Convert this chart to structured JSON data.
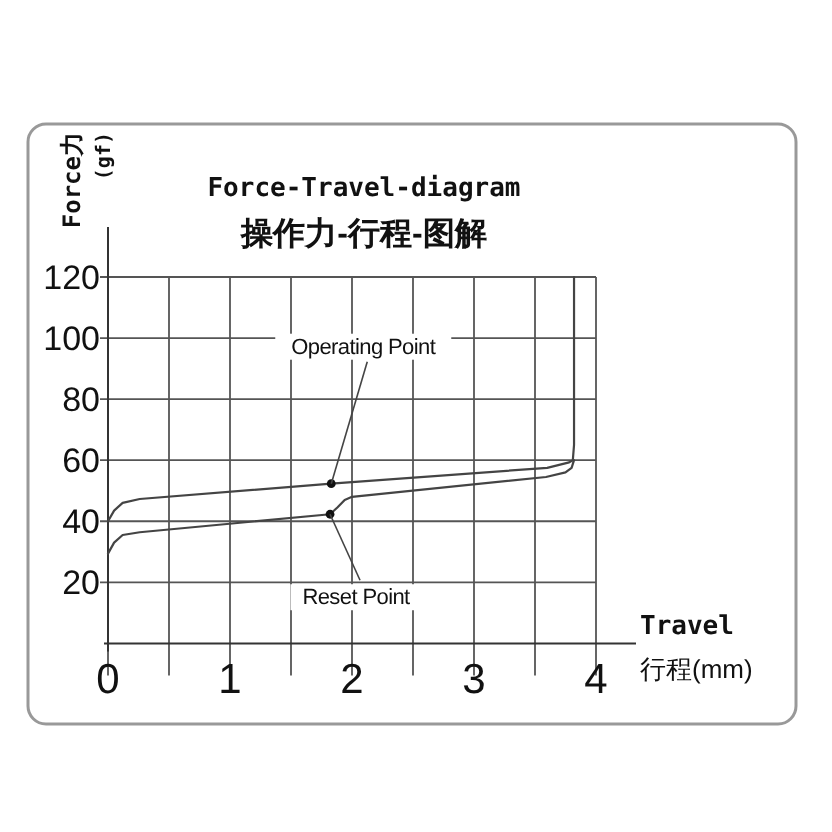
{
  "chart_data": {
    "type": "line",
    "title": "Force-Travel-diagram",
    "subtitle": "操作力-行程-图解",
    "xlabel": "Travel\n行程(mm)",
    "ylabel": "Force力\n(gf)",
    "xlim": [
      0,
      4
    ],
    "ylim": [
      0,
      120
    ],
    "xticks": [
      0,
      {
        "value": 0.5,
        "label": null
      },
      1,
      {
        "value": 1.5,
        "label": null
      },
      2,
      {
        "value": 2.5,
        "label": null
      },
      3,
      {
        "value": 3.5,
        "label": null
      },
      4
    ],
    "yticks": [
      20,
      40,
      60,
      80,
      100,
      120
    ],
    "grid": true,
    "marker": "none",
    "line_style": "solid",
    "series": [
      {
        "color": "#444444",
        "x": [
          0,
          0.05,
          0.12,
          0.26,
          1.83,
          3.6,
          3.78,
          3.81,
          3.82,
          3.82
        ],
        "values": [
          40,
          43.5,
          46,
          47.3,
          52.3,
          57.5,
          59.3,
          60,
          65,
          120
        ]
      },
      {
        "color": "#444444",
        "x": [
          0,
          0.05,
          0.12,
          0.26,
          1.82,
          1.88,
          1.94,
          2.0,
          3.59,
          3.75,
          3.8,
          3.82
        ],
        "values": [
          29.4,
          33,
          35.5,
          36.4,
          42.3,
          44.5,
          47,
          48,
          54.5,
          56,
          57.5,
          60
        ]
      },
      {
        "type": "scatter",
        "marker": "circle",
        "color": "#111111",
        "x": [
          1.83,
          1.82
        ],
        "values": [
          52.3,
          42.3
        ]
      }
    ],
    "annotations": [
      {
        "text": "Operating Point",
        "x": 1.83,
        "y": 52.3
      },
      {
        "text": "Reset Point",
        "x": 1.82,
        "y": 42.3
      }
    ]
  }
}
